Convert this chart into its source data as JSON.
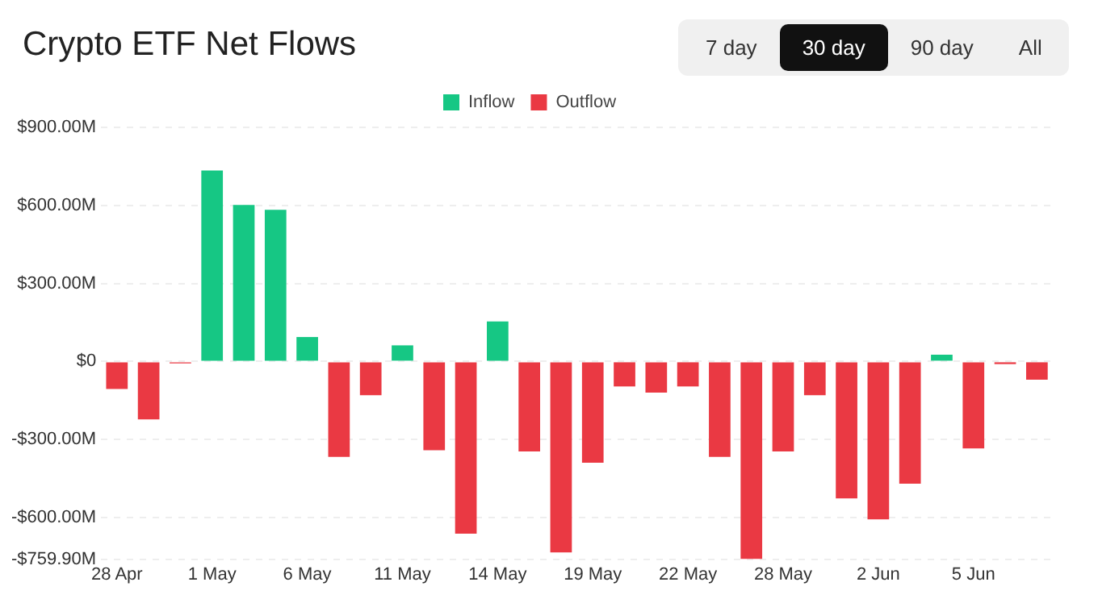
{
  "chart_data": {
    "type": "bar",
    "title": "Crypto ETF Net Flows",
    "stacked": true,
    "legend": "top",
    "grid": "y",
    "annotations": [
      "7 day",
      "30 day",
      "90 day",
      "All"
    ],
    "categories": [
      "28 Apr",
      null,
      null,
      "1 May",
      null,
      null,
      "6 May",
      null,
      null,
      "11 May",
      null,
      null,
      "14 May",
      null,
      null,
      "19 May",
      null,
      null,
      "22 May",
      null,
      null,
      "28 May",
      null,
      null,
      "2 Jun",
      null,
      null,
      "5 Jun",
      null,
      null
    ],
    "series": [
      {
        "name": "Inflow",
        "color": "#16c784",
        "values": [
          null,
          null,
          null,
          734,
          602,
          583,
          94,
          null,
          null,
          62,
          null,
          null,
          154,
          null,
          null,
          null,
          null,
          null,
          null,
          null,
          null,
          null,
          null,
          null,
          null,
          null,
          26,
          null,
          null,
          null
        ]
      },
      {
        "name": "Outflow",
        "color": "#ea3943",
        "values": [
          -106,
          -223,
          -7,
          null,
          null,
          null,
          null,
          -367,
          -130,
          null,
          -341,
          -662,
          null,
          -346,
          -734,
          -389,
          -96,
          -120,
          -96,
          -367,
          -759.9,
          -346,
          -130,
          -526,
          -607,
          -470,
          null,
          -334,
          -10,
          -70
        ]
      }
    ],
    "ylim": [
      -759.9,
      900
    ],
    "yticks": [
      {
        "value": -759.9,
        "label": "-$759.90M"
      },
      {
        "value": -600,
        "label": "-$600.00M"
      },
      {
        "value": -300,
        "label": "-$300.00M"
      },
      {
        "value": 0,
        "label": "$0"
      },
      {
        "value": 300,
        "label": "$300.00M"
      },
      {
        "value": 600,
        "label": "$600.00M"
      },
      {
        "value": 900,
        "label": "$900.00M"
      }
    ]
  }
}
